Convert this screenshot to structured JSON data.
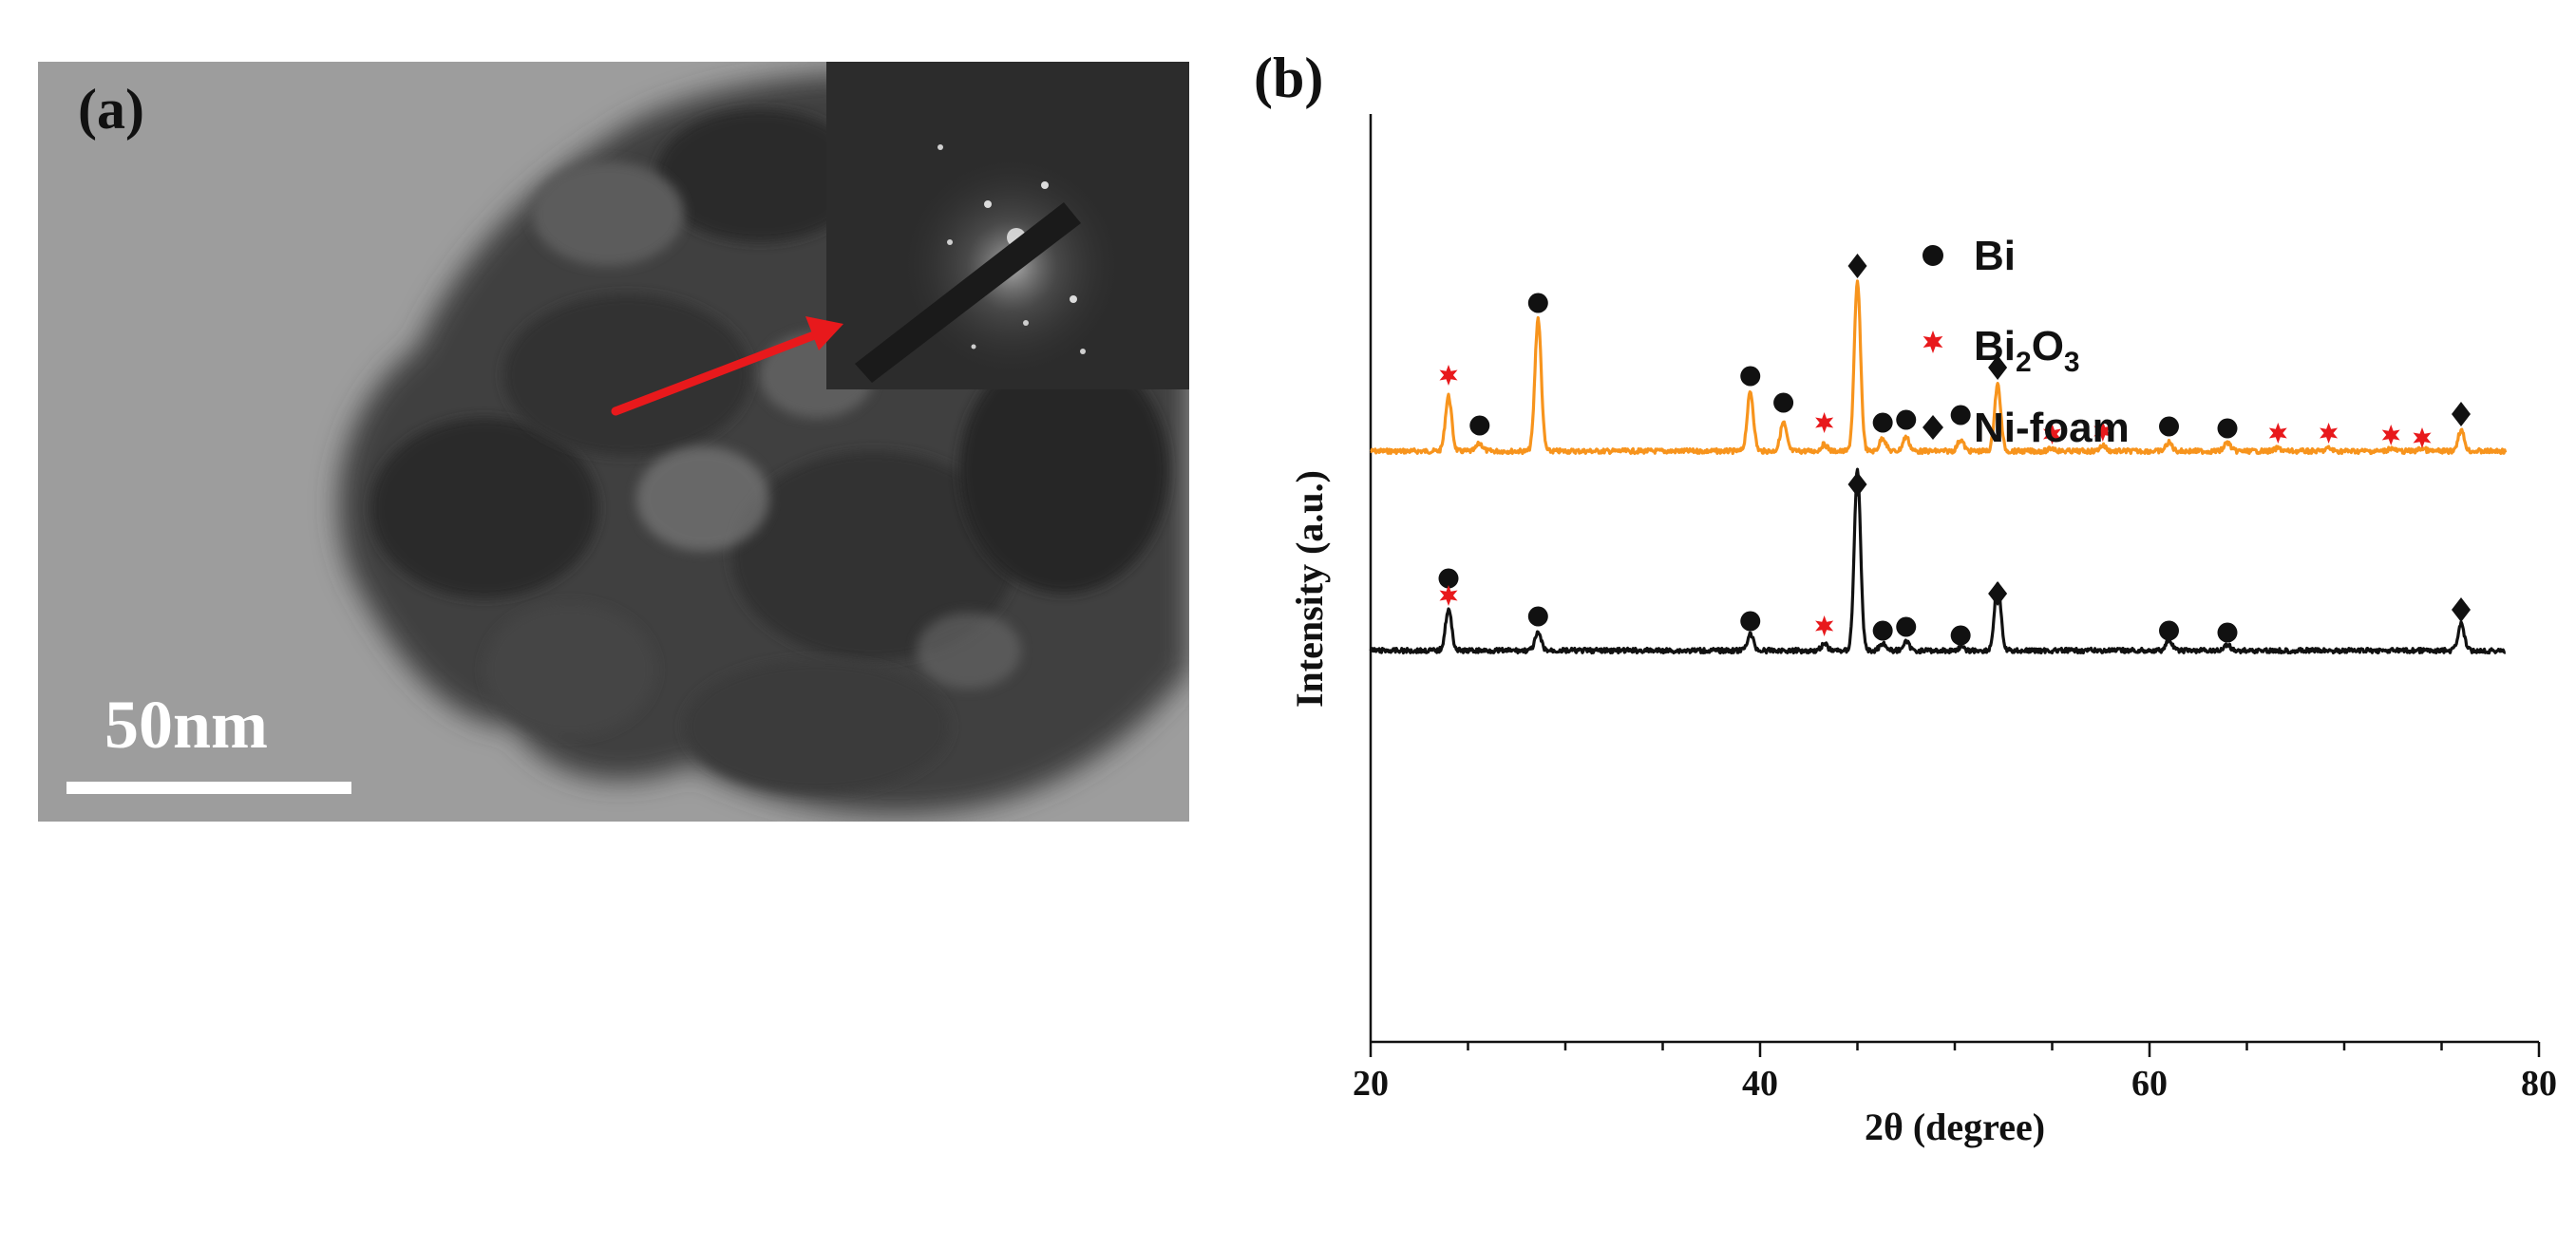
{
  "panel_a": {
    "label": "(a)",
    "scale_bar_text": "50nm",
    "arrow_color": "#e8191c"
  },
  "panel_b": {
    "label": "(b)"
  },
  "colors": {
    "orange": "#f7941d",
    "black": "#111111",
    "red_star": "#e8191c"
  },
  "chart_data": {
    "type": "line",
    "title": "",
    "xlabel": "2θ (degree)",
    "ylabel": "Intensity (a.u.)",
    "xlim": [
      20,
      80
    ],
    "xticks": [
      "20",
      "40",
      "60",
      "80"
    ],
    "y_ticks_shown": false,
    "legend": {
      "position": "top-right",
      "entries": [
        {
          "marker": "circle",
          "label_main": "Bi",
          "sub1": "",
          "mid": "",
          "sub2": ""
        },
        {
          "marker": "star",
          "label_main": "Bi",
          "sub1": "2",
          "mid": "O",
          "sub2": "3"
        },
        {
          "marker": "diamond",
          "label_main": "Ni-foam",
          "sub1": "",
          "mid": "",
          "sub2": ""
        }
      ]
    },
    "series": [
      {
        "name": "upper (orange) pattern",
        "color": "#f7941d",
        "baseline": 395,
        "x_end": 78.3,
        "peaks": [
          {
            "x": 24.0,
            "h": 58
          },
          {
            "x": 25.6,
            "h": 8
          },
          {
            "x": 28.6,
            "h": 140
          },
          {
            "x": 39.5,
            "h": 62
          },
          {
            "x": 41.2,
            "h": 30
          },
          {
            "x": 43.3,
            "h": 7
          },
          {
            "x": 45.0,
            "h": 178
          },
          {
            "x": 46.3,
            "h": 14
          },
          {
            "x": 47.5,
            "h": 15
          },
          {
            "x": 50.3,
            "h": 12
          },
          {
            "x": 52.2,
            "h": 70
          },
          {
            "x": 55.0,
            "h": 3
          },
          {
            "x": 57.6,
            "h": 6
          },
          {
            "x": 61.0,
            "h": 9
          },
          {
            "x": 64.0,
            "h": 9
          },
          {
            "x": 66.6,
            "h": 3
          },
          {
            "x": 69.2,
            "h": 3
          },
          {
            "x": 72.4,
            "h": 3
          },
          {
            "x": 74.0,
            "h": 3
          },
          {
            "x": 76.0,
            "h": 22
          }
        ],
        "markers": [
          {
            "type": "star",
            "x": 24.0,
            "y": 315
          },
          {
            "type": "circle",
            "x": 25.6,
            "y": 368
          },
          {
            "type": "circle",
            "x": 28.6,
            "y": 239
          },
          {
            "type": "circle",
            "x": 39.5,
            "y": 316
          },
          {
            "type": "circle",
            "x": 41.2,
            "y": 344
          },
          {
            "type": "star",
            "x": 43.3,
            "y": 365
          },
          {
            "type": "diamond",
            "x": 45.0,
            "y": 200
          },
          {
            "type": "circle",
            "x": 46.3,
            "y": 365
          },
          {
            "type": "circle",
            "x": 47.5,
            "y": 362
          },
          {
            "type": "circle",
            "x": 50.3,
            "y": 357
          },
          {
            "type": "diamond",
            "x": 52.2,
            "y": 307
          },
          {
            "type": "star",
            "x": 55.0,
            "y": 377
          },
          {
            "type": "star",
            "x": 57.6,
            "y": 374
          },
          {
            "type": "circle",
            "x": 61.0,
            "y": 369
          },
          {
            "type": "circle",
            "x": 64.0,
            "y": 371
          },
          {
            "type": "star",
            "x": 66.6,
            "y": 376
          },
          {
            "type": "star",
            "x": 69.2,
            "y": 376
          },
          {
            "type": "star",
            "x": 72.4,
            "y": 378
          },
          {
            "type": "star",
            "x": 74.0,
            "y": 381
          },
          {
            "type": "diamond",
            "x": 76.0,
            "y": 356
          }
        ]
      },
      {
        "name": "lower (black) pattern",
        "color": "#111111",
        "baseline": 605,
        "x_end": 78.3,
        "peaks": [
          {
            "x": 24.0,
            "h": 43
          },
          {
            "x": 28.6,
            "h": 18
          },
          {
            "x": 39.5,
            "h": 17
          },
          {
            "x": 43.3,
            "h": 7
          },
          {
            "x": 45.0,
            "h": 190
          },
          {
            "x": 46.3,
            "h": 8
          },
          {
            "x": 47.5,
            "h": 9
          },
          {
            "x": 50.3,
            "h": 3
          },
          {
            "x": 52.2,
            "h": 72
          },
          {
            "x": 61.0,
            "h": 11
          },
          {
            "x": 64.0,
            "h": 6
          },
          {
            "x": 76.0,
            "h": 28
          }
        ],
        "markers": [
          {
            "type": "circle",
            "x": 24.0,
            "y": 529
          },
          {
            "type": "star",
            "x": 24.0,
            "y": 547
          },
          {
            "type": "circle",
            "x": 28.6,
            "y": 569
          },
          {
            "type": "circle",
            "x": 39.5,
            "y": 574
          },
          {
            "type": "star",
            "x": 43.3,
            "y": 579
          },
          {
            "type": "diamond",
            "x": 45.0,
            "y": 430
          },
          {
            "type": "circle",
            "x": 46.3,
            "y": 584
          },
          {
            "type": "circle",
            "x": 47.5,
            "y": 580
          },
          {
            "type": "circle",
            "x": 50.3,
            "y": 589
          },
          {
            "type": "diamond",
            "x": 52.2,
            "y": 545
          },
          {
            "type": "circle",
            "x": 61.0,
            "y": 584
          },
          {
            "type": "circle",
            "x": 64.0,
            "y": 586
          },
          {
            "type": "diamond",
            "x": 76.0,
            "y": 562
          }
        ]
      }
    ]
  }
}
